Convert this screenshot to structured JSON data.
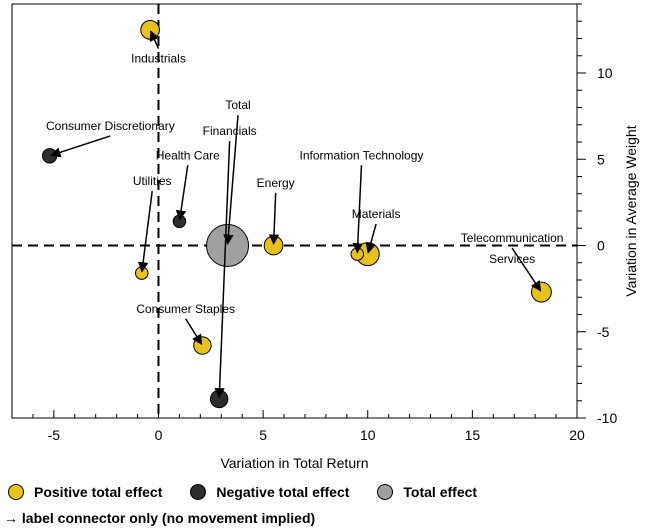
{
  "chart_data": {
    "type": "scatter",
    "title": "",
    "xlabel": "Variation in Total Return",
    "ylabel": "Variation in Average Weight",
    "xlim": [
      -7,
      20
    ],
    "ylim": [
      -10,
      14
    ],
    "xticks": [
      -5,
      0,
      5,
      10,
      15,
      20
    ],
    "yticks": [
      -10,
      -5,
      0,
      5,
      10
    ],
    "reference_lines": {
      "x": 0,
      "y": 0
    },
    "grid": false,
    "colors": {
      "positive": "#e8c21a",
      "negative": "#2d2d2d",
      "total": "#a0a0a0"
    },
    "points": [
      {
        "label": "Industrials",
        "x": -0.4,
        "y": 12.5,
        "size": 6,
        "effect": "positive",
        "label_x": 0,
        "label_y": 10.6,
        "label_anchor": "middle"
      },
      {
        "label": "Consumer Discretionary",
        "x": -5.2,
        "y": 5.2,
        "size": 3,
        "effect": "negative",
        "label_x": -2.3,
        "label_y": 6.7,
        "label_anchor": "middle"
      },
      {
        "label": "Utilities",
        "x": -0.8,
        "y": -1.6,
        "size": 2,
        "effect": "positive",
        "label_x": -0.3,
        "label_y": 3.5,
        "label_anchor": "middle"
      },
      {
        "label": "Health Care",
        "x": 1.0,
        "y": 1.4,
        "size": 2,
        "effect": "negative",
        "label_x": 1.4,
        "label_y": 5.0,
        "label_anchor": "middle"
      },
      {
        "label": "Total",
        "x": 3.3,
        "y": 0,
        "size": 40,
        "effect": "total",
        "label_x": 3.8,
        "label_y": 7.9,
        "label_anchor": "middle"
      },
      {
        "label": "Financials",
        "x": 2.9,
        "y": -8.9,
        "size": 5,
        "effect": "negative",
        "label_x": 3.4,
        "label_y": 6.4,
        "label_anchor": "middle"
      },
      {
        "label": "Energy",
        "x": 5.5,
        "y": 0,
        "size": 6,
        "effect": "positive",
        "label_x": 5.6,
        "label_y": 3.4,
        "label_anchor": "middle"
      },
      {
        "label": "Consumer Staples",
        "x": 2.1,
        "y": -5.8,
        "size": 5,
        "effect": "positive",
        "label_x": 1.3,
        "label_y": -3.9,
        "label_anchor": "middle"
      },
      {
        "label": "Information Technology",
        "x": 9.5,
        "y": -0.5,
        "size": 2,
        "effect": "positive",
        "label_x": 9.7,
        "label_y": 5.0,
        "label_anchor": "middle"
      },
      {
        "label": "Materials",
        "x": 10.0,
        "y": -0.5,
        "size": 10,
        "effect": "positive",
        "label_x": 10.4,
        "label_y": 1.6,
        "label_anchor": "middle"
      },
      {
        "label": "Telecommunication Services",
        "x": 18.3,
        "y": -2.7,
        "size": 7,
        "effect": "positive",
        "label_x": 16.9,
        "label_y": 0.2,
        "label_x2": 16.9,
        "label_y2": -1.0,
        "label_line1": "Telecommunication",
        "label_line2": "Services",
        "label_anchor": "middle"
      }
    ],
    "legend": [
      {
        "label": "Positive total effect",
        "effect": "positive"
      },
      {
        "label": "Negative total effect",
        "effect": "negative"
      },
      {
        "label": "Total effect",
        "effect": "total"
      }
    ],
    "note": "→ label connector only (no movement implied)"
  }
}
